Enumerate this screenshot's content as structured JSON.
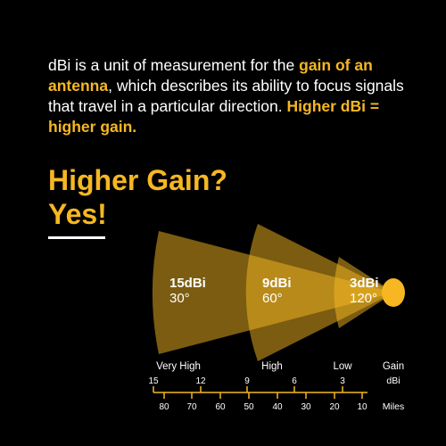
{
  "intro": {
    "part1": "dBi is a unit of measurement for the ",
    "highlight1": "gain of an antenna",
    "part2": ", which describes its ability to focus signals that travel in a particular direction. ",
    "highlight2": "Higher dBi = higher gain."
  },
  "headline": {
    "line1": "Higher Gain?",
    "line2": "Yes!"
  },
  "beams": [
    {
      "gain_label": "15dBi",
      "angle_label": "30°"
    },
    {
      "gain_label": "9dBi",
      "angle_label": "60°"
    },
    {
      "gain_label": "3dBi",
      "angle_label": "120°"
    }
  ],
  "scale": {
    "categories": [
      "Very High",
      "High",
      "Low"
    ],
    "gain_title": "Gain",
    "gain_unit": "dBi",
    "gain_ticks": [
      "15",
      "12",
      "9",
      "6",
      "3"
    ],
    "miles_ticks": [
      "80",
      "70",
      "60",
      "50",
      "40",
      "30",
      "20",
      "10"
    ],
    "miles_unit": "Miles"
  },
  "colors": {
    "accent": "#f6b722",
    "background": "#000000",
    "text": "#ffffff"
  }
}
